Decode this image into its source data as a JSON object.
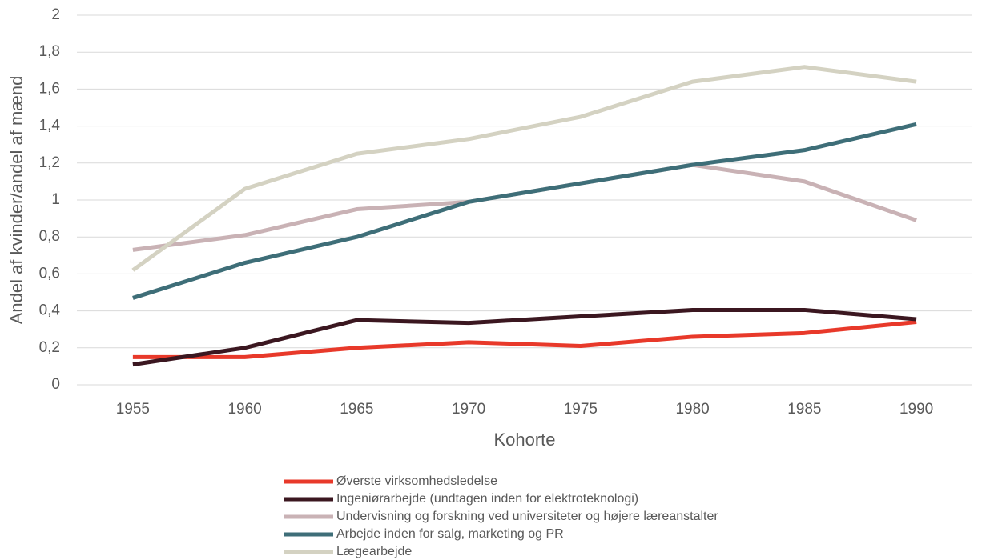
{
  "chart_data": {
    "type": "line",
    "x_label": "Kohorte",
    "y_label": "Andel af kvinder/andel af mænd",
    "categories": [
      "1955",
      "1960",
      "1965",
      "1970",
      "1975",
      "1980",
      "1985",
      "1990"
    ],
    "ylim": [
      0,
      2
    ],
    "yticks": [
      0,
      {
        "value": 0.2,
        "label": "0,2"
      },
      {
        "value": 0.4,
        "label": "0,4"
      },
      {
        "value": 0.6,
        "label": "0,6"
      },
      {
        "value": 0.8,
        "label": "0,8"
      },
      1,
      {
        "value": 1.2,
        "label": "1,2"
      },
      {
        "value": 1.4,
        "label": "1,4"
      },
      {
        "value": 1.6,
        "label": "1,6"
      },
      {
        "value": 1.8,
        "label": "1,8"
      },
      2
    ],
    "grid": true,
    "series": [
      {
        "name": "Øverste virksomhedsledelse",
        "color": "#e8392a",
        "values": [
          0.15,
          0.15,
          0.2,
          0.23,
          0.21,
          0.26,
          0.28,
          0.34
        ]
      },
      {
        "name": "Ingeniørarbejde (undtagen inden for elektroteknologi)",
        "color": "#3b1720",
        "values": [
          0.11,
          0.2,
          0.35,
          0.335,
          0.37,
          0.405,
          0.405,
          0.355
        ]
      },
      {
        "name": "Undervisning og forskning ved universiteter og højere læreanstalter",
        "color": "#c9b2b5",
        "values": [
          0.73,
          0.81,
          0.95,
          0.99,
          1.09,
          1.19,
          1.1,
          0.89
        ]
      },
      {
        "name": "Arbejde inden for salg, marketing og PR",
        "color": "#3e6e78",
        "values": [
          0.47,
          0.66,
          0.8,
          0.99,
          1.09,
          1.19,
          1.27,
          1.41
        ]
      },
      {
        "name": "Lægearbejde",
        "color": "#d4d2c2",
        "values": [
          0.62,
          1.06,
          1.25,
          1.33,
          1.45,
          1.64,
          1.72,
          1.64
        ]
      }
    ]
  }
}
